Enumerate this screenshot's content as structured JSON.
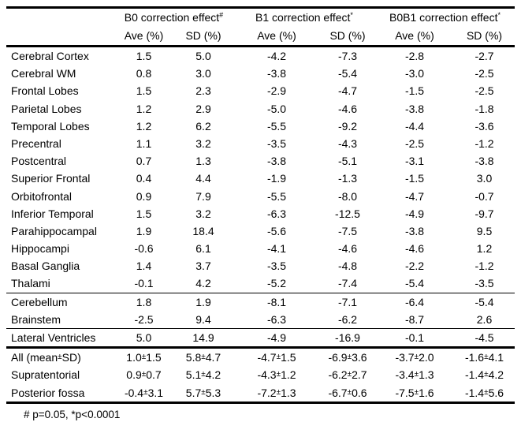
{
  "table": {
    "group_headers": [
      {
        "label": "B0 correction effect",
        "sup": "#"
      },
      {
        "label": "B1 correction effect",
        "sup": "*"
      },
      {
        "label": "B0B1 correction effect",
        "sup": "*"
      }
    ],
    "sub_headers": [
      "Ave (%)",
      "SD (%)",
      "Ave (%)",
      "SD (%)",
      "Ave (%)",
      "SD (%)"
    ],
    "groups": [
      {
        "divider_after": "thin",
        "rows": [
          {
            "label": "Cerebral Cortex",
            "values": [
              "1.5",
              "5.0",
              "-4.2",
              "-7.3",
              "-2.8",
              "-2.7"
            ]
          },
          {
            "label": "Cerebral WM",
            "values": [
              "0.8",
              "3.0",
              "-3.8",
              "-5.4",
              "-3.0",
              "-2.5"
            ]
          },
          {
            "label": "Frontal Lobes",
            "values": [
              "1.5",
              "2.3",
              "-2.9",
              "-4.7",
              "-1.5",
              "-2.5"
            ]
          },
          {
            "label": "Parietal Lobes",
            "values": [
              "1.2",
              "2.9",
              "-5.0",
              "-4.6",
              "-3.8",
              "-1.8"
            ]
          },
          {
            "label": "Temporal Lobes",
            "values": [
              "1.2",
              "6.2",
              "-5.5",
              "-9.2",
              "-4.4",
              "-3.6"
            ]
          },
          {
            "label": "Precentral",
            "values": [
              "1.1",
              "3.2",
              "-3.5",
              "-4.3",
              "-2.5",
              "-1.2"
            ]
          },
          {
            "label": "Postcentral",
            "values": [
              "0.7",
              "1.3",
              "-3.8",
              "-5.1",
              "-3.1",
              "-3.8"
            ]
          },
          {
            "label": "Superior Frontal",
            "values": [
              "0.4",
              "4.4",
              "-1.9",
              "-1.3",
              "-1.5",
              "3.0"
            ]
          },
          {
            "label": "Orbitofrontal",
            "values": [
              "0.9",
              "7.9",
              "-5.5",
              "-8.0",
              "-4.7",
              "-0.7"
            ]
          },
          {
            "label": "Inferior Temporal",
            "values": [
              "1.5",
              "3.2",
              "-6.3",
              "-12.5",
              "-4.9",
              "-9.7"
            ]
          },
          {
            "label": "Parahippocampal",
            "values": [
              "1.9",
              "18.4",
              "-5.6",
              "-7.5",
              "-3.8",
              "9.5"
            ]
          },
          {
            "label": "Hippocampi",
            "values": [
              "-0.6",
              "6.1",
              "-4.1",
              "-4.6",
              "-4.6",
              "1.2"
            ]
          },
          {
            "label": "Basal Ganglia",
            "values": [
              "1.4",
              "3.7",
              "-3.5",
              "-4.8",
              "-2.2",
              "-1.2"
            ]
          },
          {
            "label": "Thalami",
            "values": [
              "-0.1",
              "4.2",
              "-5.2",
              "-7.4",
              "-5.4",
              "-3.5"
            ]
          }
        ]
      },
      {
        "divider_after": "thin",
        "rows": [
          {
            "label": "Cerebellum",
            "values": [
              "1.8",
              "1.9",
              "-8.1",
              "-7.1",
              "-6.4",
              "-5.4"
            ]
          },
          {
            "label": "Brainstem",
            "values": [
              "-2.5",
              "9.4",
              "-6.3",
              "-6.2",
              "-8.7",
              "2.6"
            ]
          }
        ]
      },
      {
        "divider_after": "thick",
        "rows": [
          {
            "label": "Lateral Ventricles",
            "values": [
              "5.0",
              "14.9",
              "-4.9",
              "-16.9",
              "-0.1",
              "-4.5"
            ]
          }
        ]
      },
      {
        "divider_after": "none",
        "rows": [
          {
            "label": "All (mean±SD)",
            "values": [
              "1.0±1.5",
              "5.8±4.7",
              "-4.7±1.5",
              "-6.9±3.6",
              "-3.7±2.0",
              "-1.6±4.1"
            ]
          },
          {
            "label": "Supratentorial",
            "values": [
              "0.9±0.7",
              "5.1±4.2",
              "-4.3±1.2",
              "-6.2±2.7",
              "-3.4±1.3",
              "-1.4±4.2"
            ]
          },
          {
            "label": "Posterior fossa",
            "values": [
              "-0.4±3.1",
              "5.7±5.3",
              "-7.2±1.3",
              "-6.7±0.6",
              "-7.5±1.6",
              "-1.4±5.6"
            ]
          }
        ]
      }
    ],
    "footnote": "# p=0.05, *p<0.0001"
  }
}
